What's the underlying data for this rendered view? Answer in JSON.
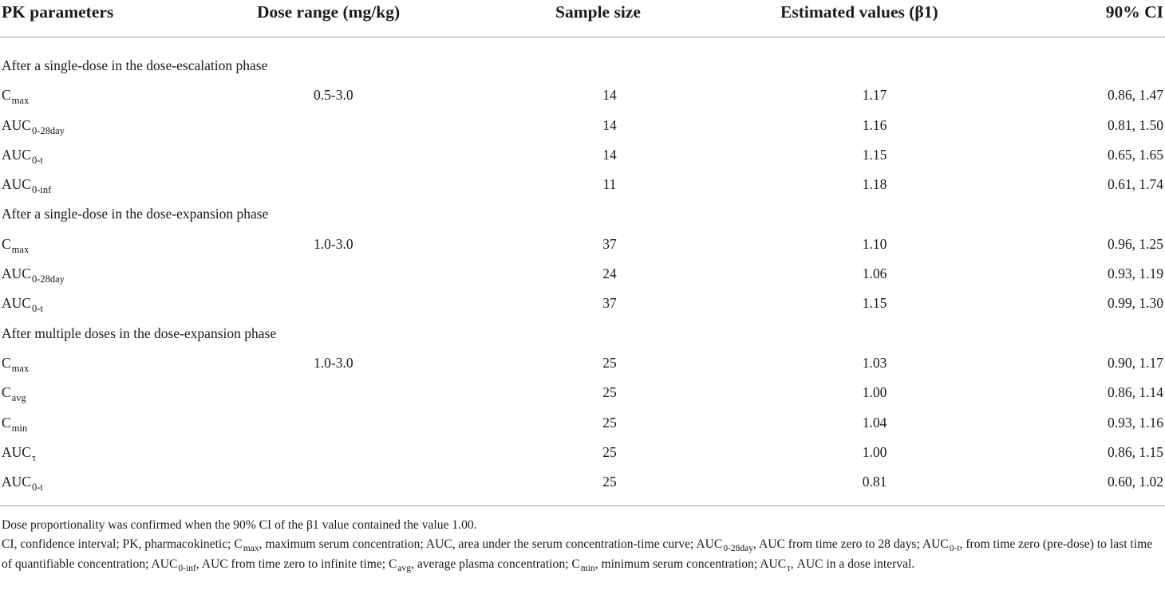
{
  "headers": {
    "param": "PK parameters",
    "dose": "Dose range (mg/kg)",
    "size": "Sample size",
    "est": "Estimated values (β1)",
    "ci": "90% CI"
  },
  "rows": [
    {
      "type": "section",
      "title": "After a single-dose in the dose-escalation phase"
    },
    {
      "type": "data",
      "base": "C",
      "sub": "max",
      "dose": "0.5-3.0",
      "size": "14",
      "est": "1.17",
      "ci": "0.86, 1.47"
    },
    {
      "type": "data",
      "base": "AUC",
      "sub": "0-28day",
      "dose": "",
      "size": "14",
      "est": "1.16",
      "ci": "0.81, 1.50"
    },
    {
      "type": "data",
      "base": "AUC",
      "sub": "0-t",
      "dose": "",
      "size": "14",
      "est": "1.15",
      "ci": "0.65, 1.65"
    },
    {
      "type": "data",
      "base": "AUC",
      "sub": "0-inf",
      "dose": "",
      "size": "11",
      "est": "1.18",
      "ci": "0.61, 1.74"
    },
    {
      "type": "section",
      "title": "After a single-dose in the dose-expansion phase"
    },
    {
      "type": "data",
      "base": "C",
      "sub": "max",
      "dose": "1.0-3.0",
      "size": "37",
      "est": "1.10",
      "ci": "0.96, 1.25"
    },
    {
      "type": "data",
      "base": "AUC",
      "sub": "0-28day",
      "dose": "",
      "size": "24",
      "est": "1.06",
      "ci": "0.93, 1.19"
    },
    {
      "type": "data",
      "base": "AUC",
      "sub": "0-t",
      "dose": "",
      "size": "37",
      "est": "1.15",
      "ci": "0.99, 1.30"
    },
    {
      "type": "section",
      "title": "After multiple doses in the dose-expansion phase"
    },
    {
      "type": "data",
      "base": "C",
      "sub": "max",
      "dose": "1.0-3.0",
      "size": "25",
      "est": "1.03",
      "ci": "0.90, 1.17"
    },
    {
      "type": "data",
      "base": "C",
      "sub": "avg",
      "dose": "",
      "size": "25",
      "est": "1.00",
      "ci": "0.86, 1.14"
    },
    {
      "type": "data",
      "base": "C",
      "sub": "min",
      "dose": "",
      "size": "25",
      "est": "1.04",
      "ci": "0.93, 1.16"
    },
    {
      "type": "data",
      "base": "AUC",
      "sub": "τ",
      "dose": "",
      "size": "25",
      "est": "1.00",
      "ci": "0.86, 1.15"
    },
    {
      "type": "data",
      "base": "AUC",
      "sub": "0-t",
      "dose": "",
      "size": "25",
      "est": "0.81",
      "ci": "0.60, 1.02"
    }
  ],
  "notes": {
    "line1": "Dose proportionality was confirmed when the 90% CI of the β1 value contained the value 1.00.",
    "line2_segments": [
      {
        "t": "CI, confidence interval; PK, pharmacokinetic; C"
      },
      {
        "s": "max"
      },
      {
        "t": ", maximum serum concentration; AUC, area under the serum concentration-time curve; AUC"
      },
      {
        "s": "0-28day"
      },
      {
        "t": ", AUC from time zero to 28 days; AUC"
      },
      {
        "s": "0-t"
      },
      {
        "t": ", from time zero (pre-dose) to last time of quantifiable concentration; AUC"
      },
      {
        "s": "0-inf"
      },
      {
        "t": ", AUC from time zero to infinite time; C"
      },
      {
        "s": "avg"
      },
      {
        "t": ", average plasma concentration; C"
      },
      {
        "s": "min"
      },
      {
        "t": ", minimum serum concentration; AUC"
      },
      {
        "s": "τ"
      },
      {
        "t": ", AUC in a dose interval."
      }
    ]
  }
}
